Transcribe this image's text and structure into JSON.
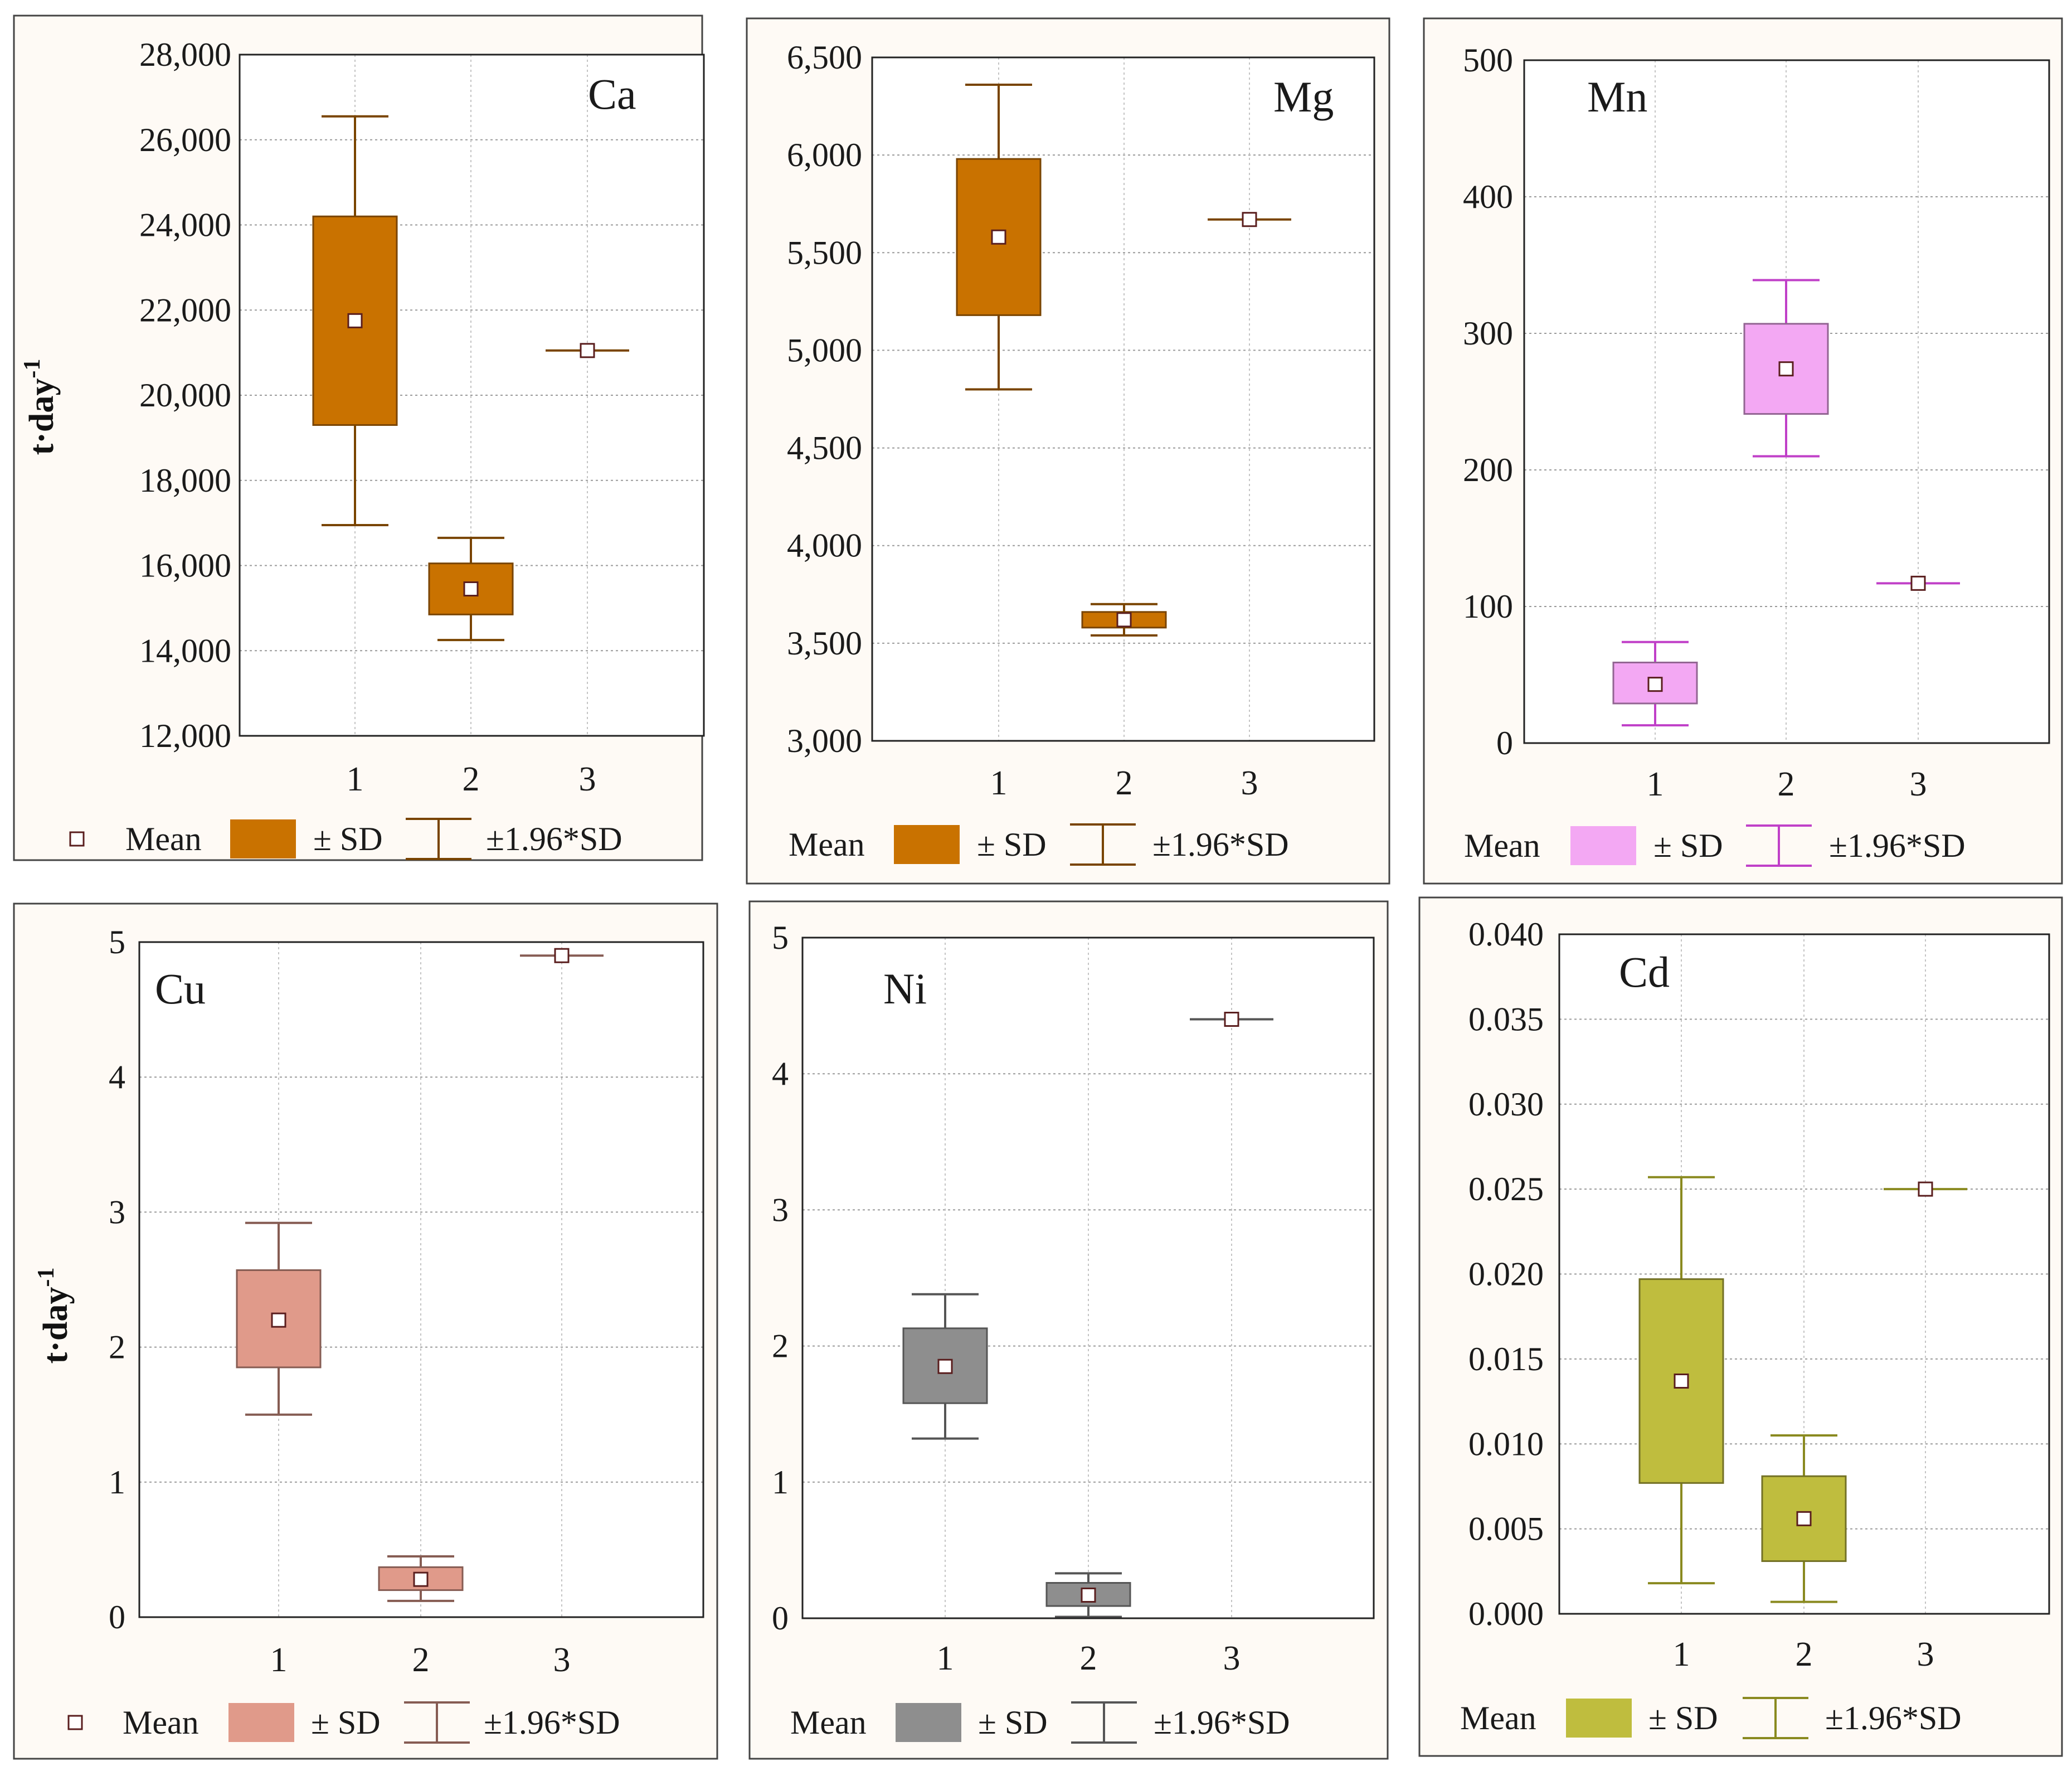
{
  "legend": {
    "mean": "Mean",
    "sd": "± SD",
    "ci": "±1.96*SD"
  },
  "chart_data": [
    {
      "type": "box",
      "annotation": "Ca",
      "ylabel": "t·day-1",
      "ylim": [
        12000,
        28000
      ],
      "yticks": [
        "12,000",
        "14,000",
        "16,000",
        "18,000",
        "20,000",
        "22,000",
        "24,000",
        "26,000",
        "28,000"
      ],
      "categories": [
        "1",
        "2",
        "3"
      ],
      "color": "#c97200",
      "series": [
        {
          "category": "1",
          "mean": 21750,
          "sd_low": 19300,
          "sd_high": 24200,
          "ci_low": 16950,
          "ci_high": 26550
        },
        {
          "category": "2",
          "mean": 15450,
          "sd_low": 14850,
          "sd_high": 16050,
          "ci_low": 14250,
          "ci_high": 16650
        },
        {
          "category": "3",
          "mean": 21050,
          "sd_low": 21050,
          "sd_high": 21050,
          "ci_low": 21050,
          "ci_high": 21050
        }
      ],
      "grid": true,
      "legend_position": "bottom"
    },
    {
      "type": "box",
      "annotation": "Mg",
      "ylabel": "",
      "ylim": [
        3000,
        6500
      ],
      "yticks": [
        "3,000",
        "3,500",
        "4,000",
        "4,500",
        "5,000",
        "5,500",
        "6,000",
        "6,500"
      ],
      "categories": [
        "1",
        "2",
        "3"
      ],
      "color": "#c97200",
      "series": [
        {
          "category": "1",
          "mean": 5580,
          "sd_low": 5180,
          "sd_high": 5980,
          "ci_low": 4800,
          "ci_high": 6360
        },
        {
          "category": "2",
          "mean": 3620,
          "sd_low": 3580,
          "sd_high": 3660,
          "ci_low": 3540,
          "ci_high": 3700
        },
        {
          "category": "3",
          "mean": 5670,
          "sd_low": 5670,
          "sd_high": 5670,
          "ci_low": 5670,
          "ci_high": 5670
        }
      ],
      "grid": true,
      "legend_position": "bottom"
    },
    {
      "type": "box",
      "annotation": "Mn",
      "ylabel": "",
      "ylim": [
        0,
        500
      ],
      "yticks": [
        "0",
        "100",
        "200",
        "300",
        "400",
        "500"
      ],
      "categories": [
        "1",
        "2",
        "3"
      ],
      "color": "#f3a8f3",
      "whisker_color": "#c040c8",
      "series": [
        {
          "category": "1",
          "mean": 43,
          "sd_low": 29,
          "sd_high": 59,
          "ci_low": 13,
          "ci_high": 74
        },
        {
          "category": "2",
          "mean": 274,
          "sd_low": 241,
          "sd_high": 307,
          "ci_low": 210,
          "ci_high": 339
        },
        {
          "category": "3",
          "mean": 117,
          "sd_low": 117,
          "sd_high": 117,
          "ci_low": 117,
          "ci_high": 117
        }
      ],
      "grid": true,
      "legend_position": "bottom"
    },
    {
      "type": "box",
      "annotation": "Cu",
      "ylabel": "t·day-1",
      "ylim": [
        0,
        5
      ],
      "yticks": [
        "0",
        "1",
        "2",
        "3",
        "4",
        "5"
      ],
      "categories": [
        "1",
        "2",
        "3"
      ],
      "color": "#e09a8a",
      "series": [
        {
          "category": "1",
          "mean": 2.2,
          "sd_low": 1.85,
          "sd_high": 2.57,
          "ci_low": 1.5,
          "ci_high": 2.92
        },
        {
          "category": "2",
          "mean": 0.28,
          "sd_low": 0.2,
          "sd_high": 0.37,
          "ci_low": 0.12,
          "ci_high": 0.45
        },
        {
          "category": "3",
          "mean": 4.9,
          "sd_low": 4.9,
          "sd_high": 4.9,
          "ci_low": 4.9,
          "ci_high": 4.9
        }
      ],
      "grid": true,
      "legend_position": "bottom"
    },
    {
      "type": "box",
      "annotation": "Ni",
      "ylabel": "",
      "ylim": [
        0,
        5
      ],
      "yticks": [
        "0",
        "1",
        "2",
        "3",
        "4",
        "5"
      ],
      "categories": [
        "1",
        "2",
        "3"
      ],
      "color": "#8e8e8e",
      "series": [
        {
          "category": "1",
          "mean": 1.85,
          "sd_low": 1.58,
          "sd_high": 2.13,
          "ci_low": 1.32,
          "ci_high": 2.38
        },
        {
          "category": "2",
          "mean": 0.17,
          "sd_low": 0.09,
          "sd_high": 0.26,
          "ci_low": 0.01,
          "ci_high": 0.33
        },
        {
          "category": "3",
          "mean": 4.4,
          "sd_low": 4.4,
          "sd_high": 4.4,
          "ci_low": 4.4,
          "ci_high": 4.4
        }
      ],
      "grid": true,
      "legend_position": "bottom"
    },
    {
      "type": "box",
      "annotation": "Cd",
      "ylabel": "",
      "ylim": [
        0,
        0.04
      ],
      "yticks": [
        "0.000",
        "0.005",
        "0.010",
        "0.015",
        "0.020",
        "0.025",
        "0.030",
        "0.035",
        "0.040"
      ],
      "categories": [
        "1",
        "2",
        "3"
      ],
      "color": "#bfbd3e",
      "whisker_color": "#8a8a20",
      "series": [
        {
          "category": "1",
          "mean": 0.0137,
          "sd_low": 0.0077,
          "sd_high": 0.0197,
          "ci_low": 0.0018,
          "ci_high": 0.0257
        },
        {
          "category": "2",
          "mean": 0.0056,
          "sd_low": 0.0031,
          "sd_high": 0.0081,
          "ci_low": 0.0007,
          "ci_high": 0.0105
        },
        {
          "category": "3",
          "mean": 0.025,
          "sd_low": 0.025,
          "sd_high": 0.025,
          "ci_low": 0.025,
          "ci_high": 0.025
        }
      ],
      "grid": true,
      "legend_position": "bottom"
    }
  ]
}
